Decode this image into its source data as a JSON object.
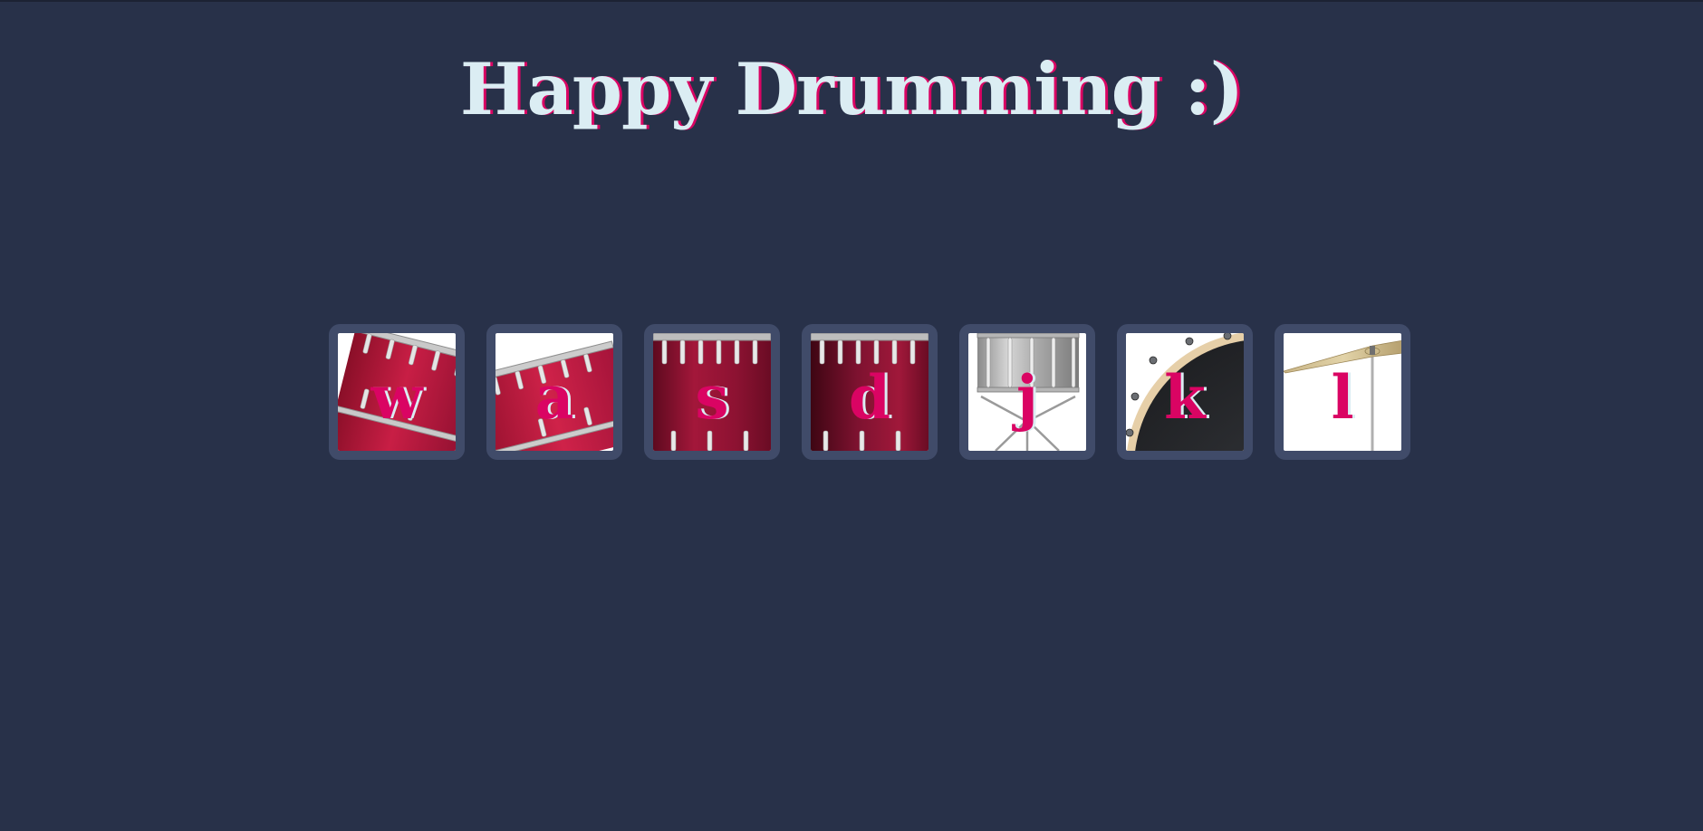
{
  "page": {
    "title": "Happy Drumming :)"
  },
  "colors": {
    "background": "#283149",
    "tile_border": "#404b69",
    "title_text": "#dbedf3",
    "accent": "#da0463"
  },
  "drums": [
    {
      "key": "w",
      "icon": "tom-1-icon"
    },
    {
      "key": "a",
      "icon": "tom-2-icon"
    },
    {
      "key": "s",
      "icon": "tom-3-icon"
    },
    {
      "key": "d",
      "icon": "tom-4-icon"
    },
    {
      "key": "j",
      "icon": "snare-icon"
    },
    {
      "key": "k",
      "icon": "kick-bass-icon"
    },
    {
      "key": "l",
      "icon": "crash-cymbal-icon"
    }
  ]
}
